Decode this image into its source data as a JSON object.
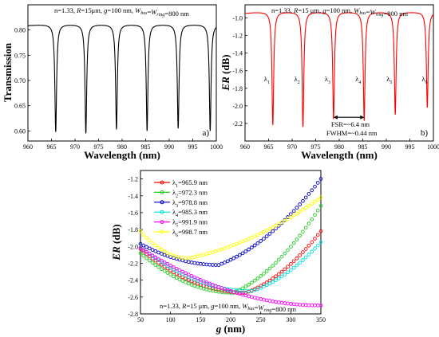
{
  "chart_data": [
    {
      "type": "line",
      "panel_label": "a)",
      "annotation": "n=1.33, R=15μm, g=100 nm, W_bus=W_ring=800 nm",
      "xlabel": "Wavelength (nm)",
      "ylabel": "Transmission",
      "xlim": [
        960,
        1000
      ],
      "ylim": [
        0.58,
        0.85
      ],
      "xticks": [
        "960",
        "965",
        "970",
        "975",
        "980",
        "985",
        "990",
        "995",
        "1000"
      ],
      "yticks": [
        "0.60",
        "0.65",
        "0.70",
        "0.75",
        "0.80"
      ],
      "color": "#000000",
      "baseline_max": 0.811,
      "fsr_nm": 6.4,
      "dips": [
        {
          "lambda": 965.9,
          "min": 0.598
        },
        {
          "lambda": 972.3,
          "min": 0.595
        },
        {
          "lambda": 978.8,
          "min": 0.603
        },
        {
          "lambda": 985.3,
          "min": 0.6
        },
        {
          "lambda": 991.9,
          "min": 0.605
        },
        {
          "lambda": 998.7,
          "min": 0.6
        }
      ]
    },
    {
      "type": "line",
      "panel_label": "b)",
      "annotation": "n=1.33, R=15 μm, g=100 nm, W_bus=W_ring=800 nm",
      "xlabel": "Wavelength (nm)",
      "ylabel": "ER (dB)",
      "xlim": [
        960,
        1000
      ],
      "ylim": [
        -2.4,
        -0.85
      ],
      "xticks": [
        "960",
        "965",
        "970",
        "975",
        "980",
        "985",
        "990",
        "995",
        "1000"
      ],
      "yticks": [
        "-1.0",
        "-1.2",
        "-1.4",
        "-1.6",
        "-1.8",
        "-2.0",
        "-2.2"
      ],
      "color": "#ff0000",
      "baseline_max": -0.93,
      "dips": [
        {
          "lambda": 965.9,
          "min": -2.22,
          "label": "λ1"
        },
        {
          "lambda": 972.3,
          "min": -2.24,
          "label": "λ2"
        },
        {
          "lambda": 978.8,
          "min": -2.15,
          "label": "λ3"
        },
        {
          "lambda": 985.3,
          "min": -2.17,
          "label": "λ4"
        },
        {
          "lambda": 991.9,
          "min": -2.1,
          "label": "λ5"
        },
        {
          "lambda": 998.7,
          "min": -2.02,
          "label": "λ6"
        }
      ],
      "fsr_label": "FSR=~6.4 nm",
      "fwhm_label": "FWHM=~0.44 nm"
    },
    {
      "type": "scatter",
      "annotation": "n=1.33, R=15 μm, g=100 nm, W_bus=W_ring=800 nm",
      "xlabel": "g (nm)",
      "ylabel": "ER (dB)",
      "xlim": [
        50,
        350
      ],
      "ylim": [
        -2.8,
        -1.1
      ],
      "xticks": [
        "50",
        "100",
        "150",
        "200",
        "250",
        "300",
        "350"
      ],
      "yticks": [
        "-1.2",
        "-1.4",
        "-1.6",
        "-1.8",
        "-2.0",
        "-2.2",
        "-2.4",
        "-2.6",
        "-2.8"
      ],
      "x_start": 50,
      "x_step": 5,
      "series": [
        {
          "name": "λ1=965.9 nm",
          "color": "#ff0000",
          "x_min": 225,
          "y_min": -2.55,
          "y_start": -2.03,
          "y_end": -1.82
        },
        {
          "name": "λ2=972.3 nm",
          "color": "#22cc22",
          "x_min": 205,
          "y_min": -2.55,
          "y_start": -2.08,
          "y_end": -1.52
        },
        {
          "name": "λ3=978.8 nm",
          "color": "#0000cc",
          "x_min": 180,
          "y_min": -2.22,
          "y_start": -1.97,
          "y_end": -1.2
        },
        {
          "name": "λ4=985.3 nm",
          "color": "#00dddd",
          "x_min": 235,
          "y_min": -2.53,
          "y_start": -2.01,
          "y_end": -1.95
        },
        {
          "name": "λ5=991.9 nm",
          "color": "#ff00ff",
          "x_min": 350,
          "y_min": -2.7,
          "y_start": -2.02,
          "y_end": -2.7
        },
        {
          "name": "λ6=998.7 nm",
          "color": "#ffff00",
          "x_min": 130,
          "y_min": -2.14,
          "y_start": -1.82,
          "y_end": -1.42
        }
      ]
    }
  ]
}
